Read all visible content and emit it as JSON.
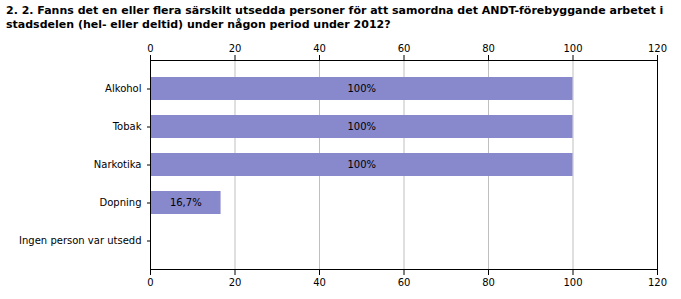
{
  "chart_data": {
    "type": "bar",
    "orientation": "horizontal",
    "title": "2. 2. Fanns det en eller flera särskilt utsedda personer för att samordna det ANDT-förebyggande arbetet i\nstadsdelen (hel- eller deltid) under någon period under 2012?",
    "categories": [
      "Alkohol",
      "Tobak",
      "Narkotika",
      "Dopning",
      "Ingen person var utsedd"
    ],
    "values": [
      100.0,
      100.0,
      100.0,
      16.7,
      0.0
    ],
    "value_labels": [
      "100%",
      "100%",
      "100%",
      "16,7%",
      null
    ],
    "data_labels": true,
    "color": "#8888cc",
    "xlim": [
      0,
      120
    ],
    "xticks": [
      0,
      20,
      40,
      60,
      80,
      100,
      120
    ],
    "grid": true
  }
}
